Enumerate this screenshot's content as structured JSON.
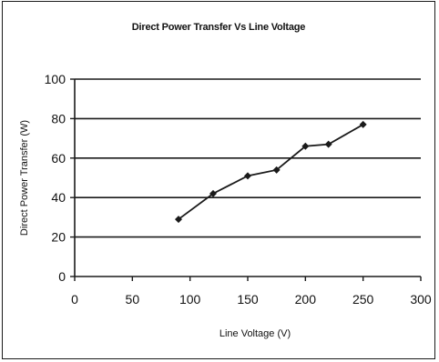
{
  "chart_data": {
    "type": "line",
    "title": "Direct Power Transfer Vs Line Voltage",
    "xlabel": "Line Voltage (V)",
    "ylabel": "Direct Power Transfer (W)",
    "xlim": [
      0,
      300
    ],
    "ylim": [
      0,
      100
    ],
    "xticks": [
      0,
      50,
      100,
      150,
      200,
      250,
      300
    ],
    "yticks": [
      0,
      20,
      40,
      60,
      80,
      100
    ],
    "grid": "horizontal",
    "series": [
      {
        "x": [
          90,
          120,
          150,
          175,
          200,
          220,
          250
        ],
        "y": [
          29,
          42,
          51,
          54,
          66,
          67,
          77
        ]
      }
    ],
    "colors": {
      "line": "#1a1a1a",
      "marker": "#1a1a1a",
      "grid": "#1a1a1a"
    }
  }
}
